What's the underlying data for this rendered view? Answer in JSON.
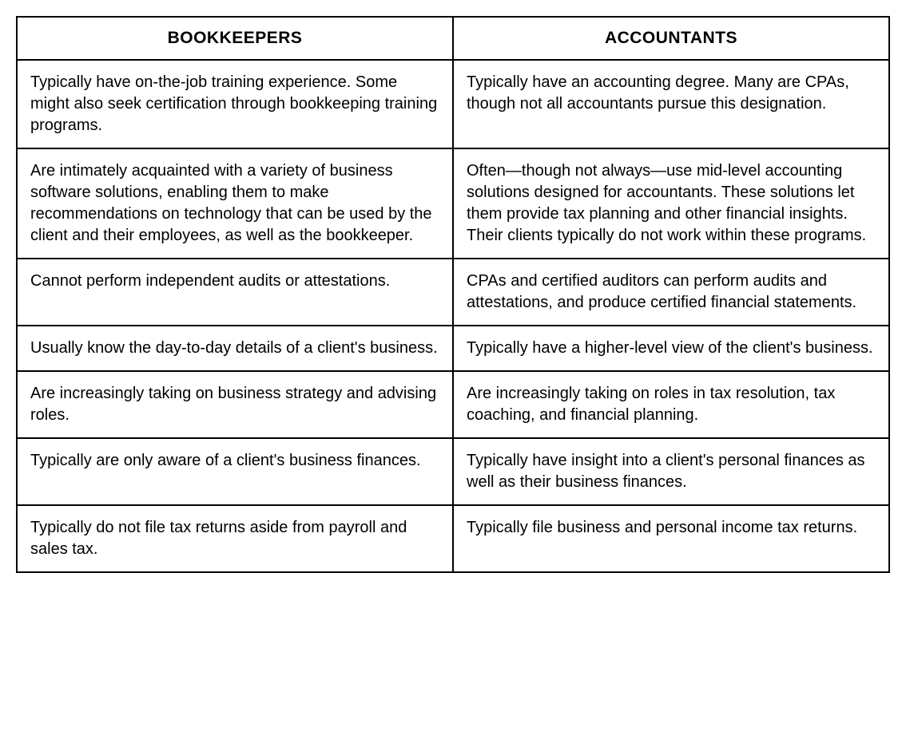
{
  "table": {
    "columns": [
      "BOOKKEEPERS",
      "ACCOUNTANTS"
    ],
    "rows": [
      [
        "Typically have on-the-job training experience. Some might also seek certification through bookkeeping training programs.",
        "Typically have an accounting degree. Many are CPAs, though not all accountants pursue this designation."
      ],
      [
        "Are intimately acquainted with a variety of business software solutions, enabling them to make recommendations on technology that can be used by the client and their employees, as well as the bookkeeper.",
        "Often—though not always—use mid-level accounting solutions designed for accountants. These solutions let them provide tax planning and other financial insights. Their clients typically do not work within these programs."
      ],
      [
        "Cannot perform independent audits or attestations.",
        "CPAs and certified auditors can perform audits and attestations, and produce certified financial statements."
      ],
      [
        "Usually know the day-to-day details of a client's business.",
        "Typically have a higher-level view of the client's business."
      ],
      [
        "Are increasingly taking on business strategy and advising roles.",
        "Are increasingly taking on roles in tax resolution, tax coaching, and financial planning."
      ],
      [
        "Typically are only aware of a client's business finances.",
        "Typically have insight into a client's personal finances as well as their business finances."
      ],
      [
        "Typically do not file tax returns aside from payroll and sales tax.",
        "Typically file business and personal income tax returns."
      ]
    ],
    "border_color": "#000000",
    "background_color": "#ffffff",
    "font_family": "Helvetica",
    "header_fontsize": 21,
    "body_fontsize": 20,
    "header_fontweight": "bold"
  }
}
